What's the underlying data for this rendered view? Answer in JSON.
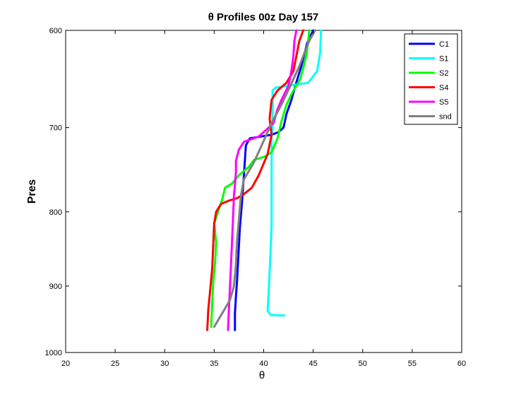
{
  "chart_data": {
    "type": "line",
    "title": "θ Profiles 00z Day 157",
    "xlabel": "θ",
    "ylabel": "Pres",
    "xlim": [
      20,
      60
    ],
    "ylim": [
      600,
      1000
    ],
    "y_reversed": true,
    "y_scale": "log",
    "x_ticks": [
      "20",
      "25",
      "30",
      "35",
      "40",
      "45",
      "50",
      "55",
      "60"
    ],
    "y_ticks": [
      "600",
      "700",
      "800",
      "900",
      "1000"
    ],
    "grid": false,
    "legend_position": "top-right",
    "series": [
      {
        "name": "C1",
        "color": "#0000ff",
        "points": [
          [
            37.1,
            965
          ],
          [
            37.1,
            940
          ],
          [
            37.2,
            915
          ],
          [
            37.3,
            895
          ],
          [
            37.4,
            870
          ],
          [
            37.5,
            845
          ],
          [
            37.6,
            820
          ],
          [
            37.8,
            790
          ],
          [
            38.0,
            755
          ],
          [
            38.2,
            720
          ],
          [
            38.6,
            712
          ],
          [
            40.8,
            708
          ],
          [
            41.5,
            705
          ],
          [
            42.0,
            700
          ],
          [
            42.3,
            685
          ],
          [
            42.8,
            670
          ],
          [
            43.2,
            655
          ],
          [
            43.8,
            635
          ],
          [
            44.4,
            612
          ],
          [
            45.0,
            600
          ]
        ]
      },
      {
        "name": "S1",
        "color": "#00ffff",
        "points": [
          [
            42.1,
            943
          ],
          [
            40.7,
            942
          ],
          [
            40.4,
            936
          ],
          [
            40.5,
            910
          ],
          [
            40.6,
            880
          ],
          [
            40.7,
            850
          ],
          [
            40.8,
            815
          ],
          [
            40.8,
            780
          ],
          [
            40.8,
            745
          ],
          [
            40.8,
            710
          ],
          [
            40.9,
            700
          ],
          [
            40.9,
            680
          ],
          [
            40.9,
            660
          ],
          [
            41.2,
            657
          ],
          [
            42.5,
            655
          ],
          [
            44.5,
            652
          ],
          [
            45.4,
            640
          ],
          [
            45.7,
            622
          ],
          [
            45.8,
            600
          ]
        ]
      },
      {
        "name": "S2",
        "color": "#00ff00",
        "points": [
          [
            34.7,
            960
          ],
          [
            34.8,
            925
          ],
          [
            34.9,
            895
          ],
          [
            35.1,
            865
          ],
          [
            35.2,
            840
          ],
          [
            35.0,
            815
          ],
          [
            35.4,
            800
          ],
          [
            35.8,
            785
          ],
          [
            36.1,
            770
          ],
          [
            36.8,
            765
          ],
          [
            37.5,
            755
          ],
          [
            38.5,
            745
          ],
          [
            39.0,
            737
          ],
          [
            40.1,
            733
          ],
          [
            40.8,
            728
          ],
          [
            41.4,
            712
          ],
          [
            41.8,
            693
          ],
          [
            42.3,
            675
          ],
          [
            42.9,
            662
          ],
          [
            43.7,
            648
          ],
          [
            44.3,
            625
          ],
          [
            44.5,
            610
          ],
          [
            44.6,
            600
          ]
        ]
      },
      {
        "name": "S4",
        "color": "#ff0000",
        "points": [
          [
            34.3,
            965
          ],
          [
            34.4,
            935
          ],
          [
            34.6,
            905
          ],
          [
            34.8,
            875
          ],
          [
            34.9,
            845
          ],
          [
            35.0,
            815
          ],
          [
            35.2,
            800
          ],
          [
            35.7,
            790
          ],
          [
            36.5,
            786
          ],
          [
            37.3,
            783
          ],
          [
            38.0,
            778
          ],
          [
            38.8,
            770
          ],
          [
            39.5,
            755
          ],
          [
            40.4,
            730
          ],
          [
            40.8,
            708
          ],
          [
            40.6,
            690
          ],
          [
            40.8,
            670
          ],
          [
            41.4,
            660
          ],
          [
            42.3,
            652
          ],
          [
            43.0,
            640
          ],
          [
            43.3,
            625
          ],
          [
            43.6,
            610
          ],
          [
            44.0,
            600
          ]
        ]
      },
      {
        "name": "S5",
        "color": "#ff00ff",
        "points": [
          [
            36.4,
            965
          ],
          [
            36.5,
            930
          ],
          [
            36.6,
            900
          ],
          [
            36.7,
            870
          ],
          [
            36.8,
            840
          ],
          [
            36.9,
            810
          ],
          [
            37.0,
            780
          ],
          [
            37.2,
            752
          ],
          [
            37.2,
            738
          ],
          [
            37.5,
            725
          ],
          [
            38.0,
            716
          ],
          [
            39.5,
            710
          ],
          [
            40.3,
            702
          ],
          [
            41.0,
            695
          ],
          [
            41.4,
            680
          ],
          [
            41.8,
            670
          ],
          [
            42.5,
            655
          ],
          [
            42.8,
            640
          ],
          [
            43.0,
            625
          ],
          [
            43.1,
            610
          ],
          [
            43.3,
            600
          ]
        ]
      },
      {
        "name": "snd",
        "color": "#808080",
        "points": [
          [
            35.0,
            960
          ],
          [
            35.8,
            940
          ],
          [
            36.6,
            920
          ],
          [
            37.0,
            900
          ],
          [
            37.2,
            870
          ],
          [
            37.3,
            840
          ],
          [
            37.5,
            810
          ],
          [
            37.7,
            780
          ],
          [
            38.0,
            760
          ],
          [
            39.0,
            740
          ],
          [
            40.0,
            715
          ],
          [
            40.8,
            695
          ],
          [
            41.8,
            675
          ],
          [
            42.7,
            655
          ],
          [
            43.6,
            635
          ],
          [
            44.6,
            610
          ],
          [
            45.2,
            600
          ]
        ]
      }
    ]
  }
}
